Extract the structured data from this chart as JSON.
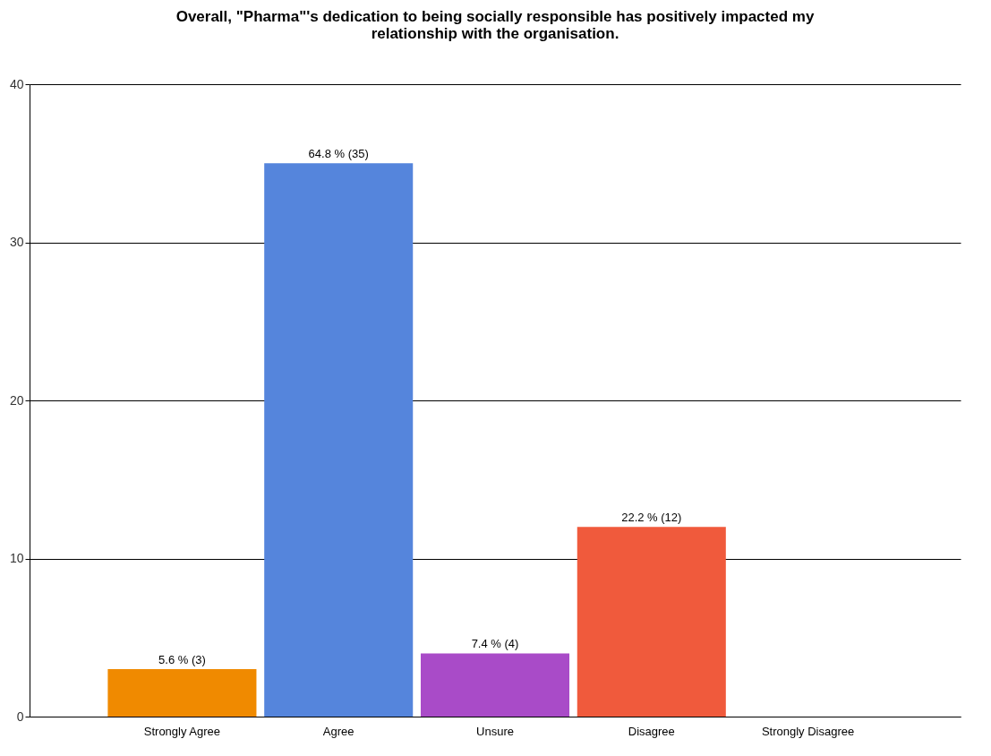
{
  "chart_data": {
    "type": "bar",
    "title": [
      "Overall, \"Pharma\"'s dedication to being socially responsible has positively impacted my",
      "relationship with the organisation."
    ],
    "categories": [
      "Strongly Agree",
      "Agree",
      "Unsure",
      "Disagree",
      "Strongly Disagree"
    ],
    "values": [
      3,
      35,
      4,
      12,
      0
    ],
    "colors": [
      "#f08a00",
      "#5585dc",
      "#a94bc8",
      "#f05a3c",
      "#999999"
    ],
    "value_labels": [
      "5.6 % (3)",
      "64.8 % (35)",
      "7.4 % (4)",
      "22.2 % (12)",
      null
    ],
    "ylim": [
      0,
      40
    ],
    "yticks": [
      0,
      10,
      20,
      30,
      40
    ],
    "grid": "y"
  }
}
